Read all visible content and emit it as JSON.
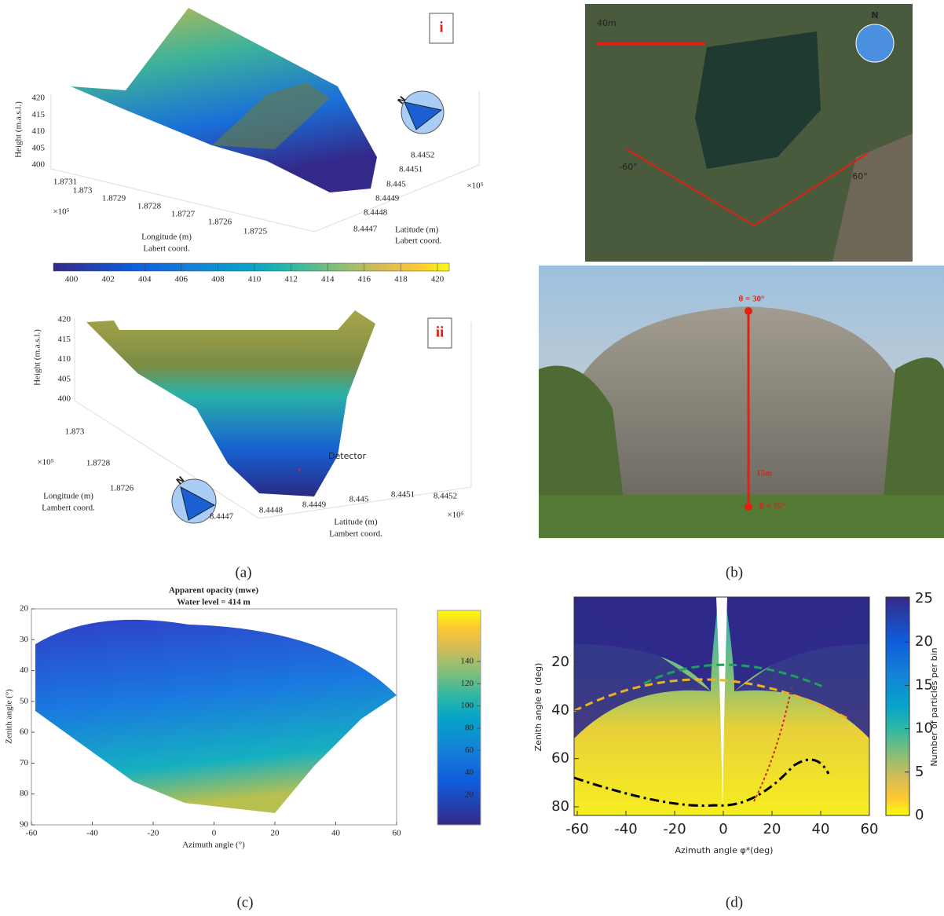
{
  "panel_a": {
    "label": "(a)",
    "plot_i": {
      "tag": "i",
      "height_label": "Height (m.a.s.l.)",
      "height_ticks": [
        400,
        405,
        410,
        415,
        420
      ],
      "longitude_ticks": [
        1.8731,
        1.873,
        1.8729,
        1.8728,
        1.8727,
        1.8726,
        1.8725
      ],
      "longitude_exponent": "×10⁵",
      "longitude_label": "Longitude (m)",
      "longitude_coord": "Labert coord.",
      "latitude_ticks": [
        8.4447,
        8.4448,
        8.4449,
        8.445,
        8.4451,
        8.4452
      ],
      "latitude_exponent": "×10⁵",
      "latitude_label": "Latitude (m)",
      "latitude_coord": "Labert coord.",
      "compass": "N"
    },
    "colorbar_ticks": [
      400,
      402,
      404,
      406,
      408,
      410,
      412,
      414,
      416,
      418,
      420
    ],
    "plot_ii": {
      "tag": "ii",
      "height_label": "Height (m.a.s.l.)",
      "height_ticks": [
        400,
        405,
        410,
        415,
        420
      ],
      "longitude_ticks": [
        1.873,
        1.8728,
        1.8726
      ],
      "longitude_exponent": "×10⁵",
      "longitude_label": "Longitude (m)",
      "longitude_coord": "Lambert coord.",
      "latitude_ticks": [
        8.4447,
        8.4448,
        8.4449,
        8.445,
        8.4451,
        8.4452
      ],
      "latitude_exponent": "×10⁵",
      "latitude_label": "Latitude (m)",
      "latitude_coord": "Lambert coord.",
      "detector": "Detector",
      "compass": "N"
    }
  },
  "panel_b": {
    "label": "(b)",
    "distance": "40m",
    "north": "N",
    "left_angle": "-60°",
    "right_angle": "60°",
    "top_zenith": "θ = 30°",
    "height": "15m",
    "bottom_zenith": "θ = 75°"
  },
  "panel_c": {
    "label": "(c)",
    "title": "Apparent opacity (mwe)",
    "subtitle": "Water level = 414 m",
    "y_label": "Zenith angle (°)",
    "x_label": "Azimuth angle (°)",
    "yticks": [
      20,
      30,
      40,
      50,
      60,
      70,
      80,
      90
    ],
    "xticks": [
      -60,
      -40,
      -20,
      0,
      20,
      40,
      60
    ],
    "colorbar_ticks": [
      20,
      40,
      60,
      80,
      100,
      120,
      140
    ]
  },
  "panel_d": {
    "label": "(d)",
    "y_label": "Zenith angle θ (deg)",
    "x_label": "Azimuth angle φ*(deg)",
    "colorbar_label": "Number of particles per bin",
    "yticks": [
      20,
      40,
      60,
      80
    ],
    "xticks": [
      -60,
      -40,
      -20,
      0,
      20,
      40,
      60
    ],
    "colorbar_ticks": [
      0,
      5,
      10,
      15,
      20,
      25
    ]
  }
}
